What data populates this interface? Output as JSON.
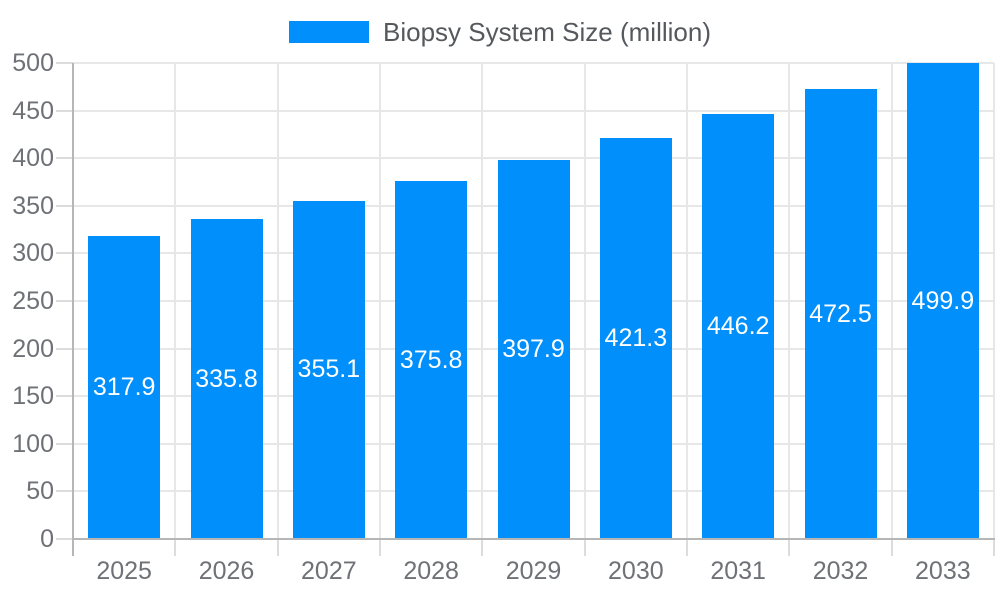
{
  "chart_data": {
    "type": "bar",
    "title": "Biopsy System Size (million)",
    "categories": [
      "2025",
      "2026",
      "2027",
      "2028",
      "2029",
      "2030",
      "2031",
      "2032",
      "2033"
    ],
    "series": [
      {
        "name": "Biopsy System Size (million)",
        "values": [
          317.9,
          335.8,
          355.1,
          375.8,
          397.9,
          421.3,
          446.2,
          472.5,
          499.9
        ]
      }
    ],
    "xlabel": "",
    "ylabel": "",
    "ylim": [
      0,
      500
    ],
    "ytick_step": 50,
    "grid": true,
    "legend_position": "top",
    "data_labels_inside_bars": true,
    "colors": {
      "bar": "#008FFB",
      "grid": "#e7e7e7",
      "tick": "#dcdcdc",
      "axis_line": "#b6b6b6",
      "axis_text": "#6e7176",
      "legend_text": "#55595e",
      "data_label_text": "#ffffff",
      "background": "#ffffff"
    }
  }
}
